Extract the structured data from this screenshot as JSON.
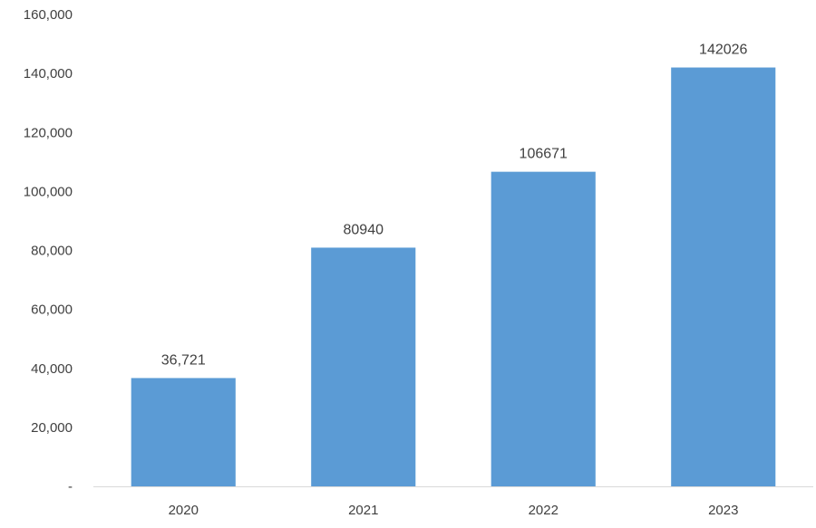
{
  "chart_data": {
    "type": "bar",
    "categories": [
      "2020",
      "2021",
      "2022",
      "2023"
    ],
    "values": [
      36721,
      80940,
      106671,
      142026
    ],
    "data_labels": [
      "36,721",
      "80940",
      "106671",
      "142026"
    ],
    "y_ticks": [
      0,
      20000,
      40000,
      60000,
      80000,
      100000,
      120000,
      140000,
      160000
    ],
    "y_tick_labels": [
      "-",
      "20,000",
      "40,000",
      "60,000",
      "80,000",
      "100,000",
      "120,000",
      "140,000",
      "160,000"
    ],
    "ylim": [
      0,
      160000
    ],
    "grid": false,
    "legend": "none",
    "title": "",
    "xlabel": "",
    "ylabel": "",
    "bar_color": "#5b9bd5",
    "axis_color": "#d9d9d9"
  }
}
